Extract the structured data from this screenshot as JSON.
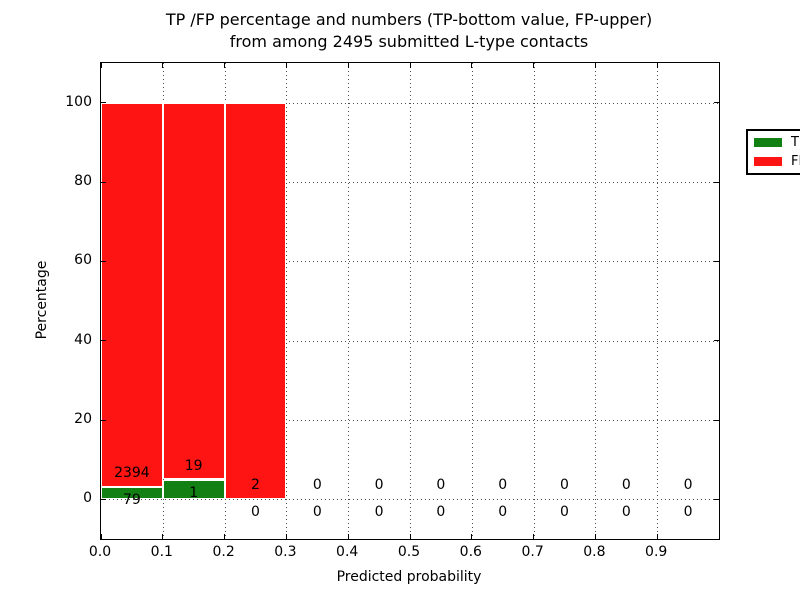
{
  "title": {
    "line1": "TP /FP percentage and numbers (TP-bottom value, FP-upper)",
    "line2": "from among 2495 submitted L-type contacts"
  },
  "chart_data": {
    "type": "bar",
    "stacked": true,
    "title": "TP /FP percentage and numbers (TP-bottom value, FP-upper)\nfrom among 2495 submitted L-type contacts",
    "total_submitted_contacts": 2495,
    "xlabel": "Predicted probability",
    "ylabel": "Percentage",
    "xlim": [
      0.0,
      1.0
    ],
    "ylim": [
      -10,
      110
    ],
    "bin_width": 0.1,
    "bin_starts": [
      0.0,
      0.1,
      0.2,
      0.3,
      0.4,
      0.5,
      0.6,
      0.7,
      0.8,
      0.9
    ],
    "xtick_labels": [
      "0.0",
      "0.1",
      "0.2",
      "0.3",
      "0.4",
      "0.5",
      "0.6",
      "0.7",
      "0.8",
      "0.9"
    ],
    "ytick_values": [
      0,
      20,
      40,
      60,
      80,
      100
    ],
    "grid": "dotted",
    "series": [
      {
        "name": "TP",
        "color": "#128012",
        "counts": [
          79,
          1,
          0,
          0,
          0,
          0,
          0,
          0,
          0,
          0
        ],
        "pct": [
          3.19,
          5.0,
          0,
          0,
          0,
          0,
          0,
          0,
          0,
          0
        ]
      },
      {
        "name": "FP",
        "color": "#ff1414",
        "counts": [
          2394,
          19,
          2,
          0,
          0,
          0,
          0,
          0,
          0,
          0
        ],
        "pct": [
          96.81,
          95.0,
          100.0,
          0,
          0,
          0,
          0,
          0,
          0,
          0
        ]
      }
    ],
    "legend": {
      "position": "upper right",
      "entries": [
        "TP",
        "FP"
      ]
    }
  },
  "colors": {
    "background": "#ffffff",
    "axes": "#000000",
    "grid_dots": "#4d4d4d",
    "bar_edge": "#ffffff",
    "text": "#000000"
  }
}
